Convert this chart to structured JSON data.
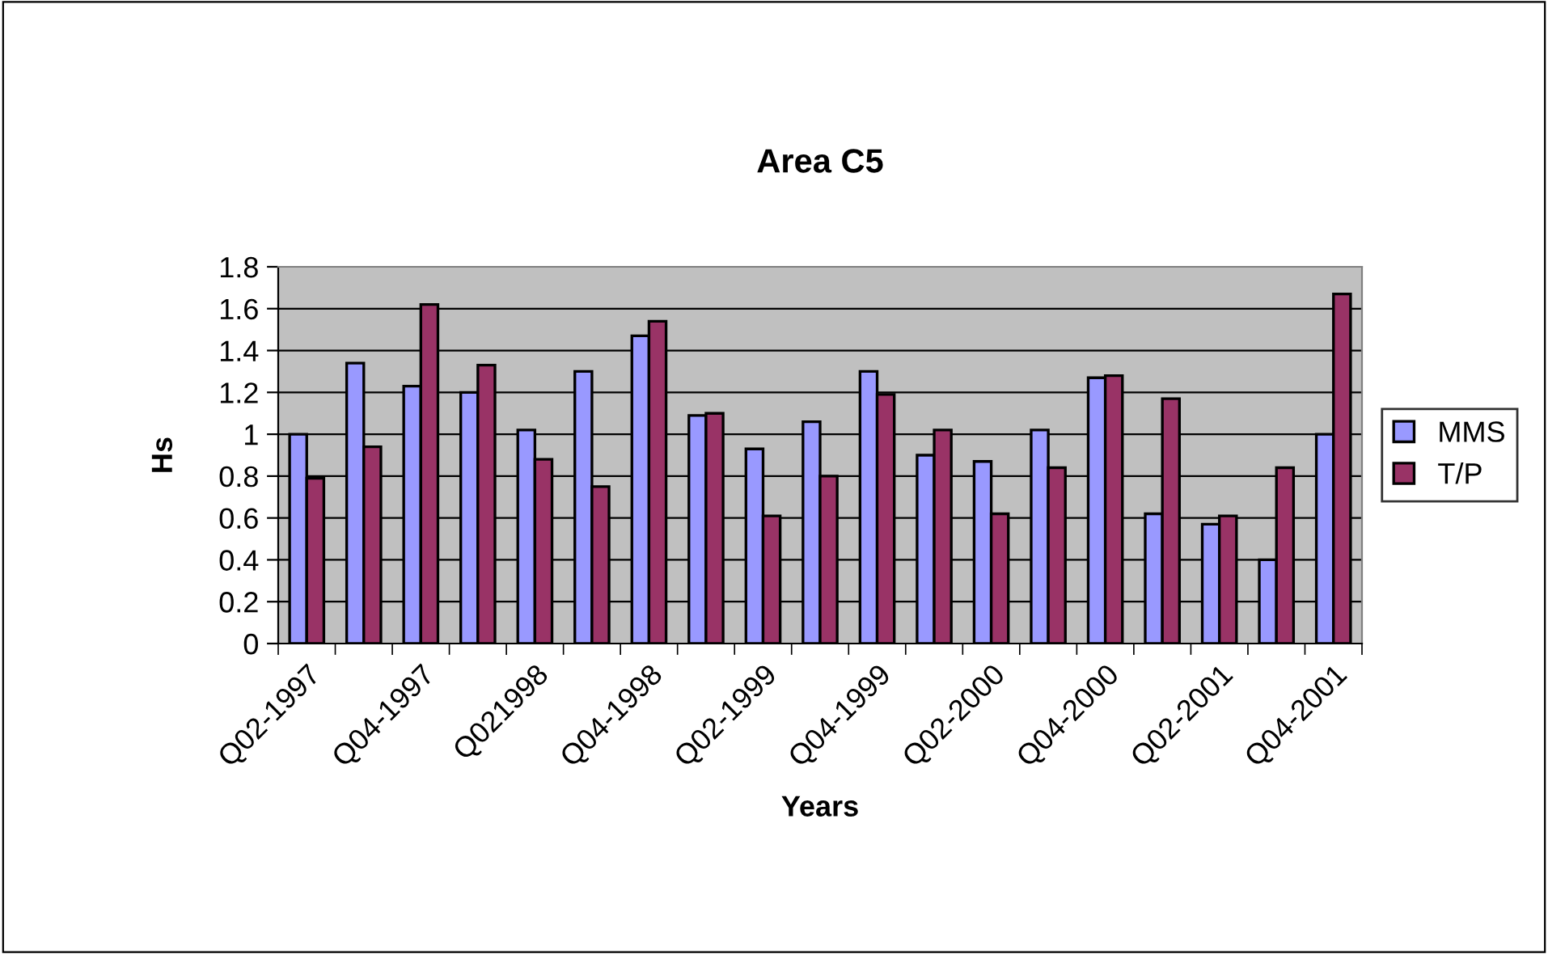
{
  "chart_data": {
    "type": "bar",
    "title": "Area C5",
    "xlabel": "Years",
    "ylabel": "Hs",
    "categories": [
      "Q02-1997",
      null,
      "Q04-1997",
      null,
      "Q021998",
      null,
      "Q04-1998",
      null,
      "Q02-1999",
      null,
      "Q04-1999",
      null,
      "Q02-2000",
      null,
      "Q04-2000",
      null,
      "Q02-2001",
      null,
      "Q04-2001"
    ],
    "series": [
      {
        "name": "MMS",
        "color": "#9999ff",
        "values": [
          1.0,
          1.34,
          1.23,
          1.2,
          1.02,
          1.3,
          1.47,
          1.09,
          0.93,
          1.06,
          1.3,
          0.9,
          0.87,
          1.02,
          1.27,
          0.62,
          0.57,
          0.4,
          1.0
        ]
      },
      {
        "name": "T/P",
        "color": "#993366",
        "values": [
          0.79,
          0.94,
          1.62,
          1.33,
          0.88,
          0.75,
          1.54,
          1.1,
          0.61,
          0.8,
          1.19,
          1.02,
          0.62,
          0.84,
          1.28,
          1.17,
          0.61,
          0.84,
          1.67
        ]
      }
    ],
    "ylim": [
      0,
      1.8
    ],
    "yticks": [
      0,
      0.2,
      0.4,
      0.6,
      0.8,
      1,
      1.2,
      1.4,
      1.6,
      1.8
    ],
    "grid": "y",
    "legend": "right"
  }
}
